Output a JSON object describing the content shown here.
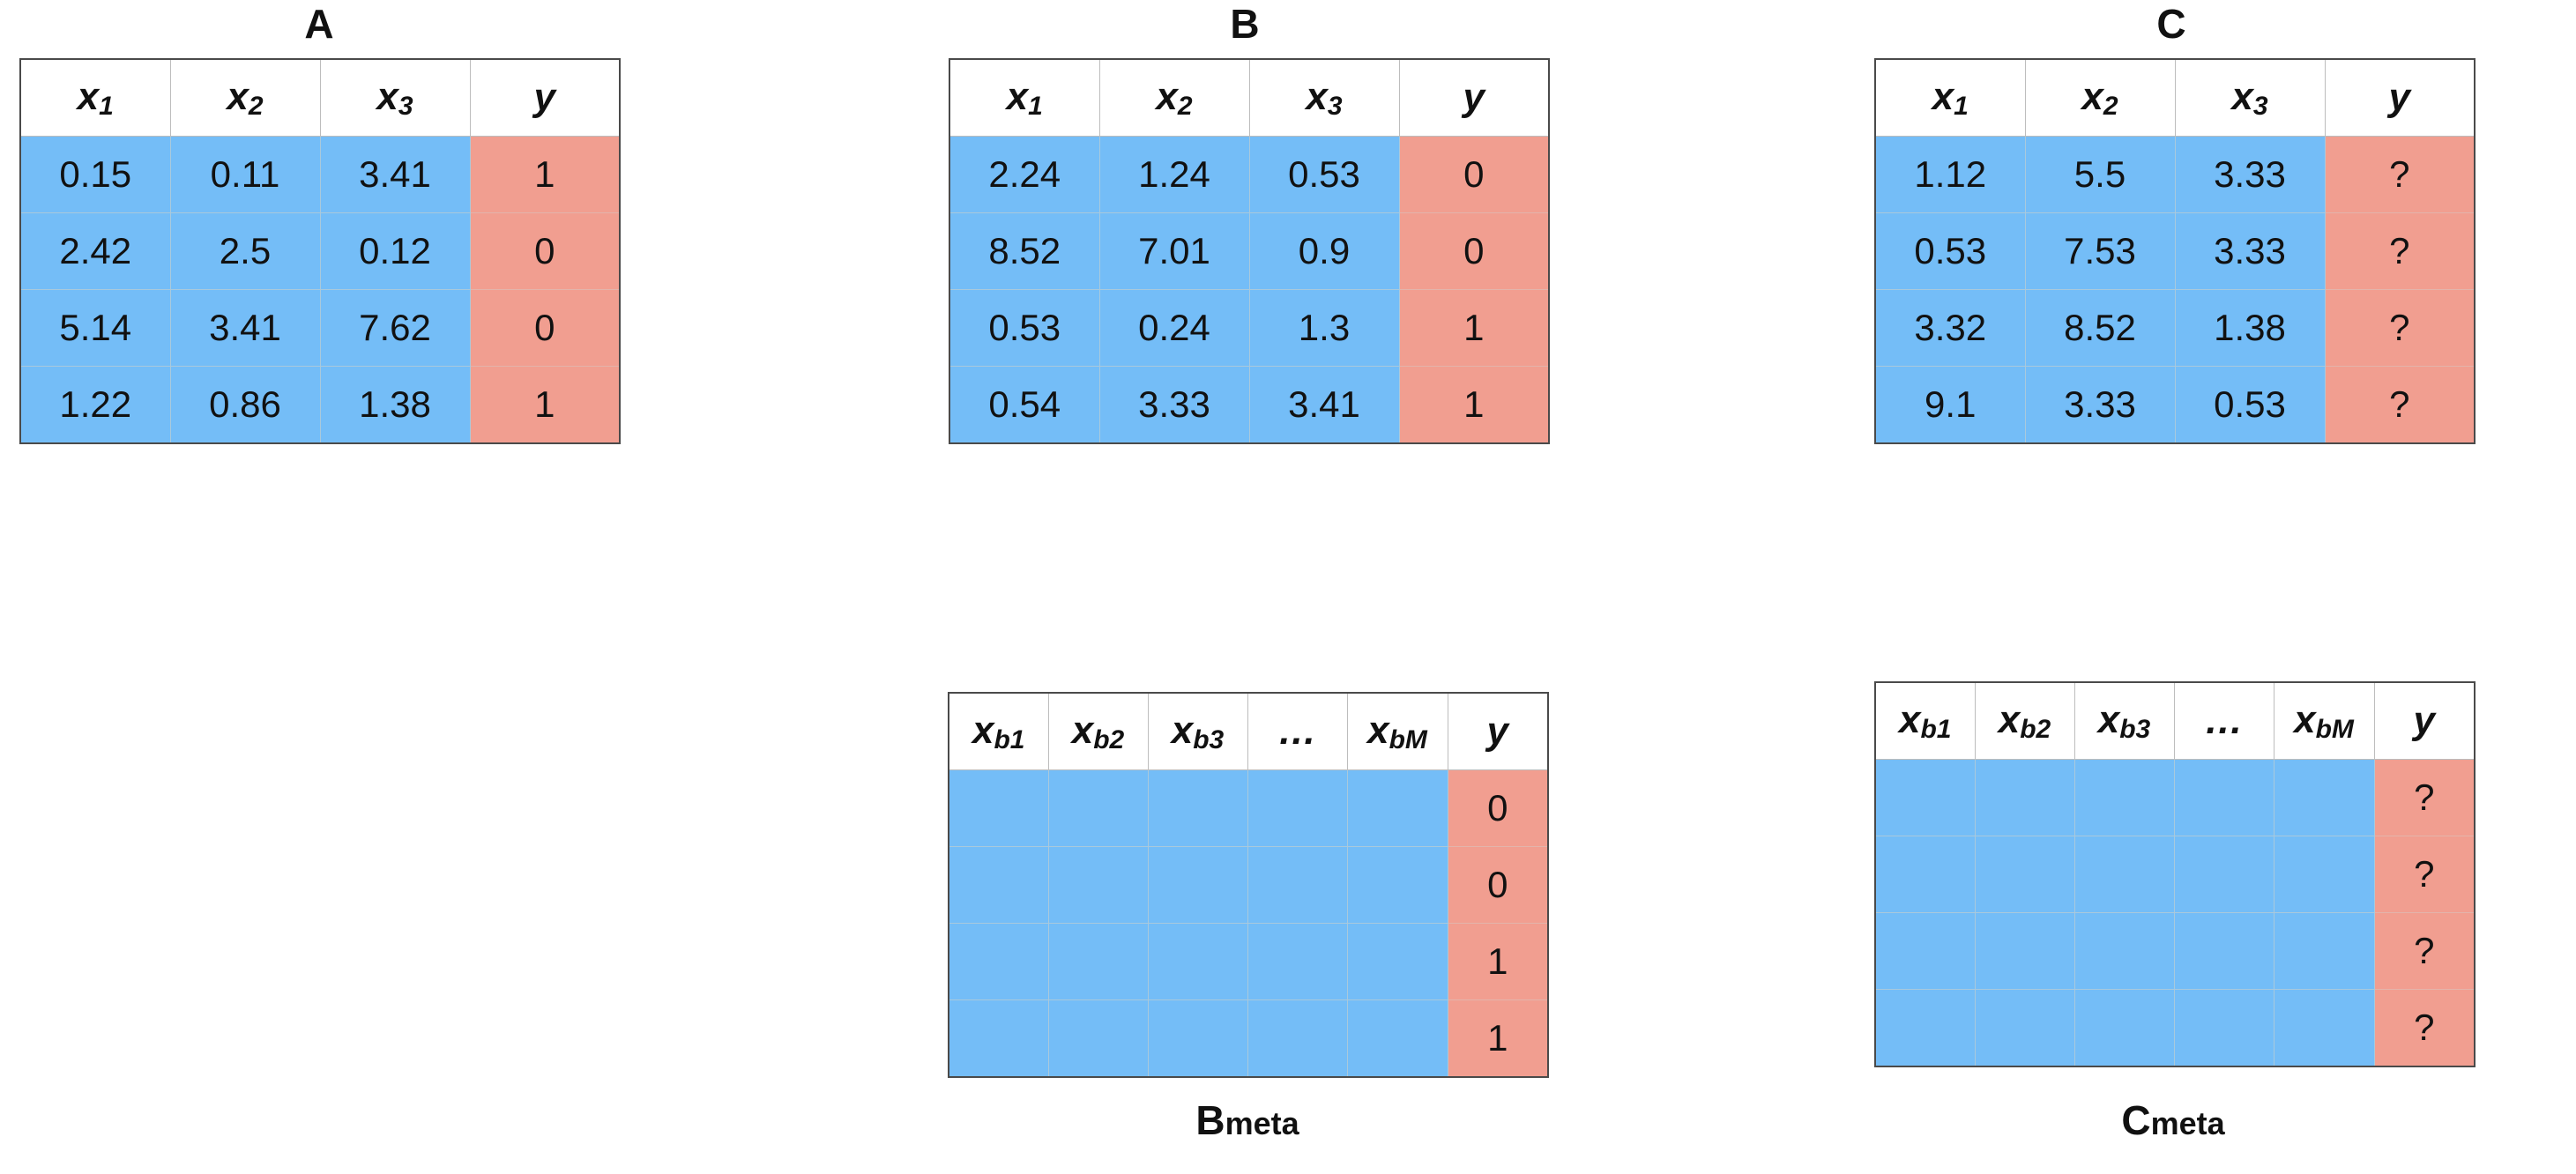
{
  "panels": {
    "A": {
      "title": "A",
      "headers": [
        {
          "base": "x",
          "sub": "1"
        },
        {
          "base": "x",
          "sub": "2"
        },
        {
          "base": "x",
          "sub": "3"
        },
        {
          "base": "y",
          "sub": ""
        }
      ],
      "rows": [
        [
          "0.15",
          "0.11",
          "3.41",
          "1"
        ],
        [
          "2.42",
          "2.5",
          "0.12",
          "0"
        ],
        [
          "5.14",
          "3.41",
          "7.62",
          "0"
        ],
        [
          "1.22",
          "0.86",
          "1.38",
          "1"
        ]
      ]
    },
    "B": {
      "title": "B",
      "headers": [
        {
          "base": "x",
          "sub": "1"
        },
        {
          "base": "x",
          "sub": "2"
        },
        {
          "base": "x",
          "sub": "3"
        },
        {
          "base": "y",
          "sub": ""
        }
      ],
      "rows": [
        [
          "2.24",
          "1.24",
          "0.53",
          "0"
        ],
        [
          "8.52",
          "7.01",
          "0.9",
          "0"
        ],
        [
          "0.53",
          "0.24",
          "1.3",
          "1"
        ],
        [
          "0.54",
          "3.33",
          "3.41",
          "1"
        ]
      ]
    },
    "C": {
      "title": "C",
      "headers": [
        {
          "base": "x",
          "sub": "1"
        },
        {
          "base": "x",
          "sub": "2"
        },
        {
          "base": "x",
          "sub": "3"
        },
        {
          "base": "y",
          "sub": ""
        }
      ],
      "rows": [
        [
          "1.12",
          "5.5",
          "3.33",
          "?"
        ],
        [
          "0.53",
          "7.53",
          "3.33",
          "?"
        ],
        [
          "3.32",
          "8.52",
          "1.38",
          "?"
        ],
        [
          "9.1",
          "3.33",
          "0.53",
          "?"
        ]
      ]
    },
    "Bmeta": {
      "title_main": "B",
      "title_sub": "meta",
      "headers": [
        {
          "base": "x",
          "sub": "b1"
        },
        {
          "base": "x",
          "sub": "b2"
        },
        {
          "base": "x",
          "sub": "b3"
        },
        {
          "base": "…",
          "sub": ""
        },
        {
          "base": "x",
          "sub": "bM"
        },
        {
          "base": "y",
          "sub": ""
        }
      ],
      "y_values": [
        "0",
        "0",
        "1",
        "1"
      ]
    },
    "Cmeta": {
      "title_main": "C",
      "title_sub": "meta",
      "headers": [
        {
          "base": "x",
          "sub": "b1"
        },
        {
          "base": "x",
          "sub": "b2"
        },
        {
          "base": "x",
          "sub": "b3"
        },
        {
          "base": "…",
          "sub": ""
        },
        {
          "base": "x",
          "sub": "bM"
        },
        {
          "base": "y",
          "sub": ""
        }
      ],
      "y_values": [
        "?",
        "?",
        "?",
        "?"
      ]
    }
  },
  "colors": {
    "feature_cell": "#74bdf7",
    "label_cell": "#f19e90"
  }
}
